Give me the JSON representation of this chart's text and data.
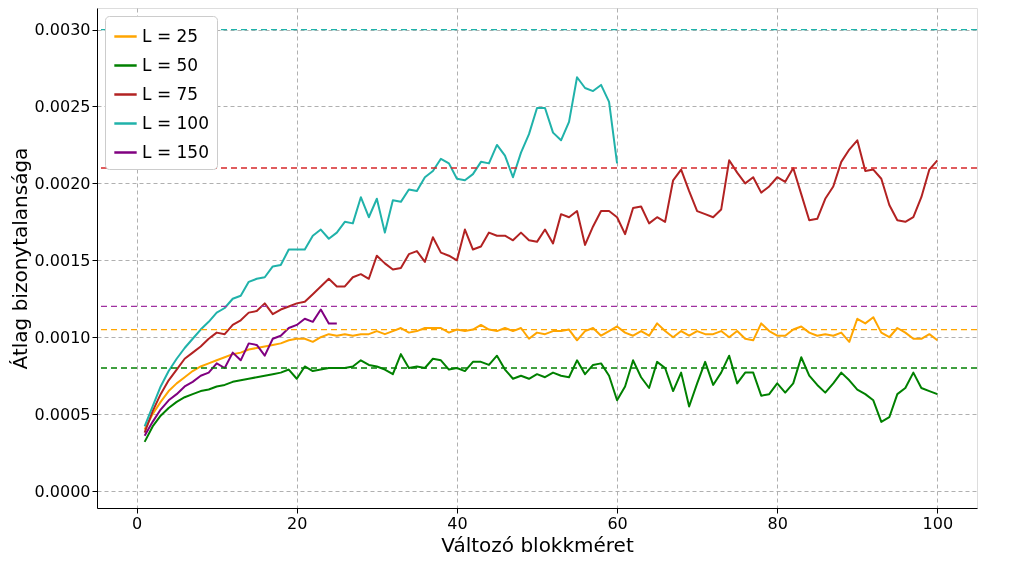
{
  "chart_data": {
    "type": "line",
    "xlabel": "Változó blokkméret",
    "ylabel": "Átlag bizonytalansága",
    "xlim": [
      -4.95,
      104.95
    ],
    "xticks": [
      0,
      20,
      40,
      60,
      80,
      100
    ],
    "ylim": [
      -0.00011,
      0.00314
    ],
    "yticks": [
      {
        "value": 0,
        "label": "0.0000"
      },
      {
        "value": 0.0005,
        "label": "0.0005"
      },
      {
        "value": 0.001,
        "label": "0.0010"
      },
      {
        "value": 0.0015,
        "label": "0.0015"
      },
      {
        "value": 0.002,
        "label": "0.0020"
      },
      {
        "value": 0.0025,
        "label": "0.0025"
      },
      {
        "value": 0.003,
        "label": "0.0030"
      }
    ],
    "grid": true,
    "legend": "top left",
    "line_style": "solid",
    "series": [
      {
        "name": "L = 25",
        "color": "#ffa500",
        "x": [
          1,
          2,
          3,
          4,
          5,
          6,
          7,
          8,
          9,
          10,
          11,
          12,
          13,
          14,
          15,
          16,
          17,
          18,
          19,
          20,
          21,
          22,
          23,
          24,
          25,
          26,
          27,
          28,
          29,
          30,
          31,
          32,
          33,
          34,
          35,
          36,
          37,
          38,
          39,
          40,
          41,
          42,
          43,
          44,
          45,
          46,
          47,
          48,
          49,
          50,
          51,
          52,
          53,
          54,
          55,
          56,
          57,
          58,
          59,
          60,
          61,
          62,
          63,
          64,
          65,
          66,
          67,
          68,
          69,
          70,
          71,
          72,
          73,
          74,
          75,
          76,
          77,
          78,
          79,
          80,
          81,
          82,
          83,
          84,
          85,
          86,
          87,
          88,
          89,
          90,
          91,
          92,
          93,
          94,
          95,
          96,
          97,
          98,
          99,
          100
        ],
        "values": [
          0.0004,
          0.0005,
          0.00058,
          0.00065,
          0.0007,
          0.00074,
          0.00078,
          0.00081,
          0.00083,
          0.00085,
          0.00087,
          0.00089,
          0.0009,
          0.00092,
          0.00093,
          0.00094,
          0.00095,
          0.00096,
          0.00098,
          0.00099,
          0.00099,
          0.00097,
          0.001,
          0.00102,
          0.00101,
          0.00102,
          0.00101,
          0.00102,
          0.00102,
          0.00104,
          0.00102,
          0.00104,
          0.00106,
          0.00103,
          0.00104,
          0.00106,
          0.00106,
          0.00106,
          0.00103,
          0.00105,
          0.00104,
          0.00105,
          0.00108,
          0.00105,
          0.00104,
          0.00106,
          0.00104,
          0.00106,
          0.00099,
          0.00103,
          0.00102,
          0.00104,
          0.00104,
          0.00105,
          0.00098,
          0.00104,
          0.00106,
          0.00101,
          0.00104,
          0.00107,
          0.00103,
          0.00101,
          0.00104,
          0.00101,
          0.00109,
          0.00104,
          0.001,
          0.00104,
          0.00101,
          0.00104,
          0.00102,
          0.00102,
          0.00104,
          0.001,
          0.00104,
          0.00099,
          0.00098,
          0.00109,
          0.00104,
          0.00101,
          0.00101,
          0.00105,
          0.00107,
          0.00103,
          0.00101,
          0.00102,
          0.00101,
          0.00103,
          0.00097,
          0.00112,
          0.00109,
          0.00113,
          0.00103,
          0.001,
          0.00106,
          0.00103,
          0.00099,
          0.00099,
          0.00102,
          0.00098
        ]
      },
      {
        "name": "L = 50",
        "color": "#008000",
        "x": [
          1,
          2,
          3,
          4,
          5,
          6,
          7,
          8,
          9,
          10,
          11,
          12,
          13,
          14,
          15,
          16,
          17,
          18,
          19,
          20,
          21,
          22,
          23,
          24,
          25,
          26,
          27,
          28,
          29,
          30,
          31,
          32,
          33,
          34,
          35,
          36,
          37,
          38,
          39,
          40,
          41,
          42,
          43,
          44,
          45,
          46,
          47,
          48,
          49,
          50,
          51,
          52,
          53,
          54,
          55,
          56,
          57,
          58,
          59,
          60,
          61,
          62,
          63,
          64,
          65,
          66,
          67,
          68,
          69,
          70,
          71,
          72,
          73,
          74,
          75,
          76,
          77,
          78,
          79,
          80,
          81,
          82,
          83,
          84,
          85,
          86,
          87,
          88,
          89,
          90,
          91,
          92,
          93,
          94,
          95,
          96,
          97,
          98,
          99,
          100
        ],
        "values": [
          0.00032,
          0.00042,
          0.00049,
          0.00054,
          0.00058,
          0.00061,
          0.00063,
          0.00065,
          0.00066,
          0.00068,
          0.00069,
          0.00071,
          0.00072,
          0.00073,
          0.00074,
          0.00075,
          0.00076,
          0.00077,
          0.00079,
          0.00073,
          0.00081,
          0.00078,
          0.00079,
          0.0008,
          0.0008,
          0.0008,
          0.00081,
          0.00085,
          0.00082,
          0.00081,
          0.00079,
          0.00076,
          0.00089,
          0.0008,
          0.00081,
          0.0008,
          0.00086,
          0.00085,
          0.00079,
          0.0008,
          0.00078,
          0.00084,
          0.00084,
          0.00082,
          0.00088,
          0.00079,
          0.00073,
          0.00075,
          0.00073,
          0.00076,
          0.00074,
          0.00077,
          0.00075,
          0.00074,
          0.00085,
          0.00076,
          0.00082,
          0.00083,
          0.00075,
          0.00059,
          0.00068,
          0.00085,
          0.00074,
          0.00067,
          0.00084,
          0.0008,
          0.00065,
          0.00077,
          0.00055,
          0.0007,
          0.00084,
          0.00069,
          0.00077,
          0.00088,
          0.0007,
          0.00077,
          0.00077,
          0.00062,
          0.00063,
          0.0007,
          0.00064,
          0.0007,
          0.00087,
          0.00075,
          0.00069,
          0.00064,
          0.0007,
          0.00077,
          0.00072,
          0.00066,
          0.00063,
          0.00059,
          0.00045,
          0.00048,
          0.00063,
          0.00067,
          0.00077,
          0.00067,
          0.00065,
          0.00063
        ]
      },
      {
        "name": "L = 75",
        "color": "#b22222",
        "x": [
          1,
          2,
          3,
          4,
          5,
          6,
          7,
          8,
          9,
          10,
          11,
          12,
          13,
          14,
          15,
          16,
          17,
          18,
          19,
          20,
          21,
          22,
          23,
          24,
          25,
          26,
          27,
          28,
          29,
          30,
          31,
          32,
          33,
          34,
          35,
          36,
          37,
          38,
          39,
          40,
          41,
          42,
          43,
          44,
          45,
          46,
          47,
          48,
          49,
          50,
          51,
          52,
          53,
          54,
          55,
          56,
          57,
          58,
          59,
          60,
          61,
          62,
          63,
          64,
          65,
          66,
          67,
          68,
          69,
          70,
          71,
          72,
          73,
          74,
          75,
          76,
          77,
          78,
          79,
          80,
          81,
          82,
          83,
          84,
          85,
          86,
          87,
          88,
          89,
          90,
          91,
          92,
          93,
          94,
          95,
          96,
          97,
          98,
          99,
          100
        ],
        "values": [
          0.00038,
          0.00052,
          0.00063,
          0.00072,
          0.00079,
          0.00086,
          0.0009,
          0.00094,
          0.00099,
          0.00103,
          0.00102,
          0.00108,
          0.00111,
          0.00116,
          0.00117,
          0.00122,
          0.00115,
          0.00118,
          0.0012,
          0.00122,
          0.00123,
          0.00128,
          0.00133,
          0.00138,
          0.00133,
          0.00133,
          0.00139,
          0.00141,
          0.00138,
          0.00153,
          0.00148,
          0.00144,
          0.00145,
          0.00154,
          0.00156,
          0.00149,
          0.00165,
          0.00155,
          0.00153,
          0.0015,
          0.0017,
          0.00157,
          0.00159,
          0.00168,
          0.00166,
          0.00166,
          0.00163,
          0.00168,
          0.00163,
          0.00162,
          0.0017,
          0.00161,
          0.0018,
          0.00178,
          0.00182,
          0.0016,
          0.00172,
          0.00182,
          0.00182,
          0.00178,
          0.00167,
          0.00184,
          0.00185,
          0.00174,
          0.00178,
          0.00175,
          0.00202,
          0.00209,
          0.00195,
          0.00182,
          0.0018,
          0.00178,
          0.00183,
          0.00215,
          0.00207,
          0.002,
          0.00204,
          0.00194,
          0.00198,
          0.00204,
          0.00201,
          0.0021,
          0.00193,
          0.00176,
          0.00177,
          0.0019,
          0.00198,
          0.00214,
          0.00222,
          0.00228,
          0.00208,
          0.00209,
          0.00203,
          0.00186,
          0.00176,
          0.00175,
          0.00178,
          0.00191,
          0.00209,
          0.00215
        ]
      },
      {
        "name": "L = 100",
        "color": "#20b2aa",
        "x": [
          1,
          2,
          3,
          4,
          5,
          6,
          7,
          8,
          9,
          10,
          11,
          12,
          13,
          14,
          15,
          16,
          17,
          18,
          19,
          20,
          21,
          22,
          23,
          24,
          25,
          26,
          27,
          28,
          29,
          30,
          31,
          32,
          33,
          34,
          35,
          36,
          37,
          38,
          39,
          40,
          41,
          42,
          43,
          44,
          45,
          46,
          47,
          48,
          49,
          50,
          51,
          52,
          53,
          54,
          55,
          56,
          57,
          58,
          59,
          60
        ],
        "values": [
          0.00042,
          0.00055,
          0.00068,
          0.00078,
          0.00086,
          0.00093,
          0.00099,
          0.00105,
          0.0011,
          0.00116,
          0.00119,
          0.00125,
          0.00127,
          0.00136,
          0.00138,
          0.00139,
          0.00146,
          0.00147,
          0.00157,
          0.00157,
          0.00157,
          0.00166,
          0.0017,
          0.00164,
          0.00168,
          0.00175,
          0.00174,
          0.00191,
          0.00178,
          0.0019,
          0.00168,
          0.00189,
          0.00188,
          0.00196,
          0.00195,
          0.00204,
          0.00208,
          0.00216,
          0.00213,
          0.00203,
          0.00202,
          0.00206,
          0.00214,
          0.00213,
          0.00225,
          0.00218,
          0.00204,
          0.0022,
          0.00232,
          0.00249,
          0.00249,
          0.00233,
          0.00228,
          0.0024,
          0.00269,
          0.00262,
          0.0026,
          0.00264,
          0.00253,
          0.00213
        ]
      },
      {
        "name": "L = 150",
        "color": "#800080",
        "x": [
          1,
          2,
          3,
          4,
          5,
          6,
          7,
          8,
          9,
          10,
          11,
          12,
          13,
          14,
          15,
          16,
          17,
          18,
          19,
          20,
          21,
          22,
          23,
          24,
          25
        ],
        "values": [
          0.00036,
          0.00045,
          0.00053,
          0.00059,
          0.00063,
          0.00068,
          0.00071,
          0.00075,
          0.00077,
          0.00083,
          0.0008,
          0.0009,
          0.00085,
          0.00096,
          0.00095,
          0.00088,
          0.00099,
          0.00101,
          0.00106,
          0.00108,
          0.00112,
          0.0011,
          0.00118,
          0.00109,
          0.00109
        ]
      }
    ],
    "ref_lines": [
      {
        "axis": "y",
        "value": 0.00105,
        "color": "#ffa500",
        "line_style": "dashed"
      },
      {
        "axis": "y",
        "value": 0.0008,
        "color": "#008000",
        "line_style": "dashed"
      },
      {
        "axis": "y",
        "value": 0.0021,
        "color": "#d62728",
        "line_style": "dashed"
      },
      {
        "axis": "y",
        "value": 0.003,
        "color": "#20b2aa",
        "line_style": "dashed"
      },
      {
        "axis": "y",
        "value": 0.0012,
        "color": "#a030a0",
        "line_style": "dashed"
      }
    ]
  }
}
